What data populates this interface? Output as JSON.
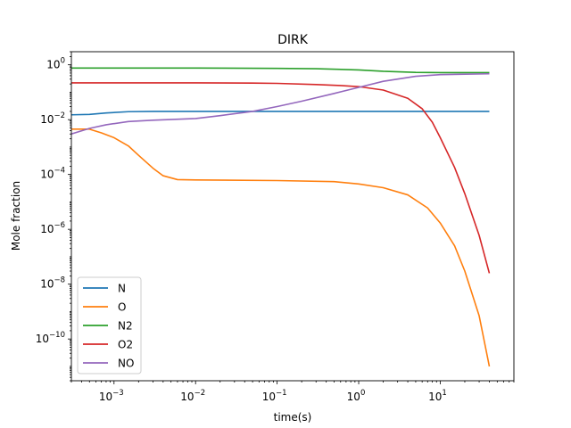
{
  "chart_data": {
    "type": "line",
    "title": "DIRK",
    "xlabel": "time(s)",
    "ylabel": "Mole fraction",
    "xscale": "log",
    "yscale": "log",
    "xlim": [
      0.0003,
      80
    ],
    "ylim": [
      3e-12,
      3.0
    ],
    "grid": false,
    "legend_position": "lower-left",
    "x_ticks": [
      {
        "value": 0.001,
        "base": "10",
        "exp": "−3"
      },
      {
        "value": 0.01,
        "base": "10",
        "exp": "−2"
      },
      {
        "value": 0.1,
        "base": "10",
        "exp": "−1"
      },
      {
        "value": 1,
        "base": "10",
        "exp": "0"
      },
      {
        "value": 10,
        "base": "10",
        "exp": "1"
      }
    ],
    "y_ticks": [
      {
        "value": 1e-10,
        "base": "10",
        "exp": "−10"
      },
      {
        "value": 1e-08,
        "base": "10",
        "exp": "−8"
      },
      {
        "value": 1e-06,
        "base": "10",
        "exp": "−6"
      },
      {
        "value": 0.0001,
        "base": "10",
        "exp": "−4"
      },
      {
        "value": 0.01,
        "base": "10",
        "exp": "−2"
      },
      {
        "value": 1,
        "base": "10",
        "exp": "0"
      }
    ],
    "series": [
      {
        "name": "N",
        "color": "#1f77b4",
        "points": [
          [
            0.0003,
            0.015
          ],
          [
            0.0005,
            0.0155
          ],
          [
            0.0008,
            0.0175
          ],
          [
            0.0015,
            0.0195
          ],
          [
            0.003,
            0.02
          ],
          [
            0.01,
            0.02
          ],
          [
            0.1,
            0.02
          ],
          [
            1,
            0.02
          ],
          [
            10,
            0.02
          ],
          [
            40,
            0.02
          ]
        ]
      },
      {
        "name": "O",
        "color": "#ff7f0e",
        "points": [
          [
            0.0003,
            0.0045
          ],
          [
            0.0005,
            0.0045
          ],
          [
            0.0007,
            0.0033
          ],
          [
            0.001,
            0.0022
          ],
          [
            0.0015,
            0.0011
          ],
          [
            0.002,
            0.0005
          ],
          [
            0.003,
            0.00017
          ],
          [
            0.004,
            9e-05
          ],
          [
            0.006,
            6.5e-05
          ],
          [
            0.01,
            6.3e-05
          ],
          [
            0.1,
            6e-05
          ],
          [
            0.5,
            5.5e-05
          ],
          [
            1,
            4.5e-05
          ],
          [
            2,
            3.3e-05
          ],
          [
            4,
            1.8e-05
          ],
          [
            7,
            6e-06
          ],
          [
            10,
            1.7e-06
          ],
          [
            15,
            2.5e-07
          ],
          [
            20,
            3e-08
          ],
          [
            30,
            7e-10
          ],
          [
            40,
            1e-11
          ]
        ]
      },
      {
        "name": "N2",
        "color": "#2ca02c",
        "points": [
          [
            0.0003,
            0.76
          ],
          [
            0.001,
            0.76
          ],
          [
            0.01,
            0.76
          ],
          [
            0.1,
            0.74
          ],
          [
            0.3,
            0.72
          ],
          [
            1,
            0.65
          ],
          [
            2,
            0.58
          ],
          [
            5,
            0.53
          ],
          [
            10,
            0.52
          ],
          [
            40,
            0.52
          ]
        ]
      },
      {
        "name": "O2",
        "color": "#d62728",
        "points": [
          [
            0.0003,
            0.22
          ],
          [
            0.001,
            0.22
          ],
          [
            0.01,
            0.22
          ],
          [
            0.05,
            0.215
          ],
          [
            0.1,
            0.21
          ],
          [
            0.3,
            0.19
          ],
          [
            0.6,
            0.175
          ],
          [
            1,
            0.16
          ],
          [
            2,
            0.12
          ],
          [
            4,
            0.06
          ],
          [
            6,
            0.025
          ],
          [
            8,
            0.008
          ],
          [
            10,
            0.0022
          ],
          [
            15,
            0.00018
          ],
          [
            20,
            2e-05
          ],
          [
            30,
            6e-07
          ],
          [
            40,
            2.5e-08
          ]
        ]
      },
      {
        "name": "NO",
        "color": "#9467bd",
        "points": [
          [
            0.0003,
            0.003
          ],
          [
            0.0005,
            0.0048
          ],
          [
            0.0008,
            0.0065
          ],
          [
            0.0015,
            0.0085
          ],
          [
            0.003,
            0.0095
          ],
          [
            0.01,
            0.011
          ],
          [
            0.02,
            0.014
          ],
          [
            0.05,
            0.02
          ],
          [
            0.1,
            0.03
          ],
          [
            0.2,
            0.047
          ],
          [
            0.5,
            0.09
          ],
          [
            1,
            0.15
          ],
          [
            2,
            0.25
          ],
          [
            5,
            0.38
          ],
          [
            10,
            0.44
          ],
          [
            40,
            0.47
          ]
        ]
      }
    ]
  }
}
